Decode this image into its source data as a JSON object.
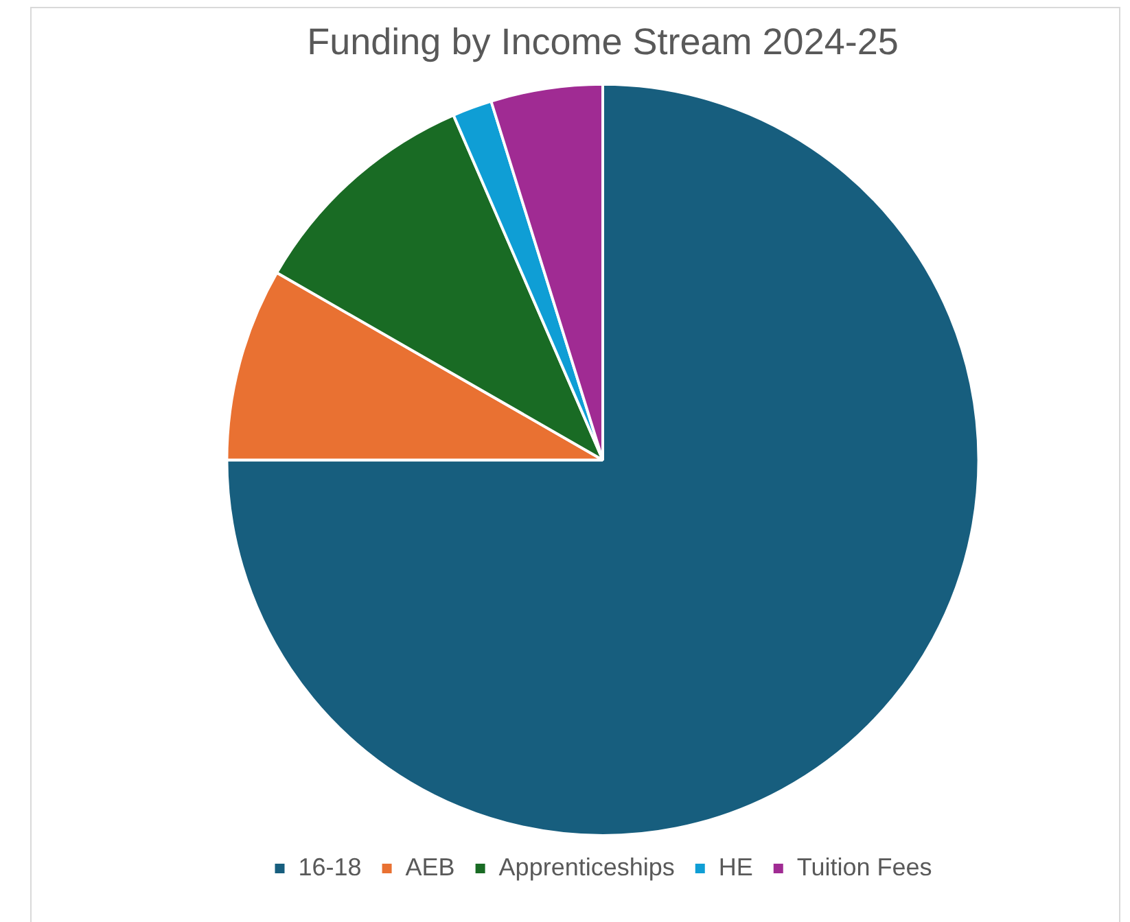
{
  "chart_data": {
    "type": "pie",
    "title": "Funding by Income Stream 2024-25",
    "categories": [
      "16-18",
      "AEB",
      "Apprenticeships",
      "HE",
      "Tuition Fees"
    ],
    "values": [
      75,
      8.3,
      10.2,
      1.7,
      4.8
    ],
    "colors": [
      "#175e7e",
      "#e97132",
      "#196b24",
      "#0f9ed5",
      "#a02b93"
    ],
    "legend": "bottom"
  }
}
